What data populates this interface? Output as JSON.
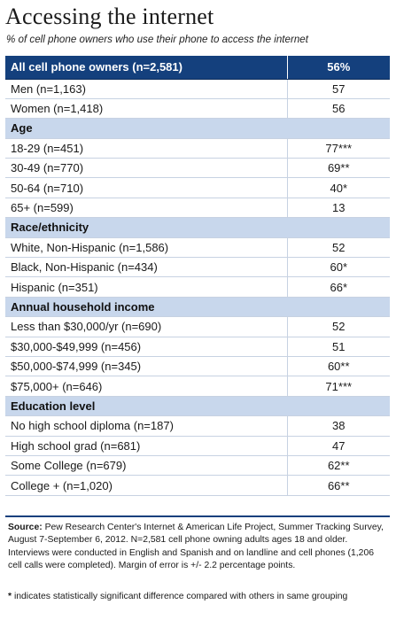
{
  "title": "Accessing the internet",
  "subtitle": "% of cell phone owners who use their phone to access the internet",
  "overall": {
    "label": "All cell phone owners (n=2,581)",
    "value": "56%"
  },
  "groups": [
    {
      "heading": "",
      "rows": [
        {
          "label": "Men (n=1,163)",
          "value": "57"
        },
        {
          "label": "Women (n=1,418)",
          "value": "56"
        }
      ]
    },
    {
      "heading": "Age",
      "rows": [
        {
          "label": "18-29 (n=451)",
          "value": "77***"
        },
        {
          "label": "30-49 (n=770)",
          "value": "69**"
        },
        {
          "label": "50-64 (n=710)",
          "value": "40*"
        },
        {
          "label": "65+ (n=599)",
          "value": "13"
        }
      ]
    },
    {
      "heading": "Race/ethnicity",
      "rows": [
        {
          "label": "White, Non-Hispanic (n=1,586)",
          "value": "52"
        },
        {
          "label": "Black, Non-Hispanic (n=434)",
          "value": "60*"
        },
        {
          "label": "Hispanic (n=351)",
          "value": "66*"
        }
      ]
    },
    {
      "heading": "Annual household income",
      "rows": [
        {
          "label": "Less than $30,000/yr (n=690)",
          "value": "52"
        },
        {
          "label": "$30,000-$49,999 (n=456)",
          "value": "51"
        },
        {
          "label": "$50,000-$74,999 (n=345)",
          "value": "60**"
        },
        {
          "label": "$75,000+ (n=646)",
          "value": "71***"
        }
      ]
    },
    {
      "heading": "Education level",
      "rows": [
        {
          "label": "No high school diploma (n=187)",
          "value": "38"
        },
        {
          "label": "High school grad (n=681)",
          "value": "47"
        },
        {
          "label": "Some College (n=679)",
          "value": "62**"
        },
        {
          "label": "College + (n=1,020)",
          "value": "66**"
        }
      ]
    }
  ],
  "footer": {
    "source_label": "Source:",
    "source_text": "Pew Research Center's Internet & American Life Project, Summer Tracking Survey, August 7-September 6, 2012. N=2,581 cell phone owning adults ages 18 and older. Interviews were conducted in English and Spanish and on landline and cell phones (1,206 cell calls were completed). Margin of error is +/- 2.2 percentage points.",
    "note_symbol": "*",
    "note_text": "indicates statistically significant difference compared with others in same grouping"
  },
  "colors": {
    "header_fill": "#14407d",
    "section_fill": "#c8d7ec",
    "grid_line": "#c7d2e2"
  }
}
